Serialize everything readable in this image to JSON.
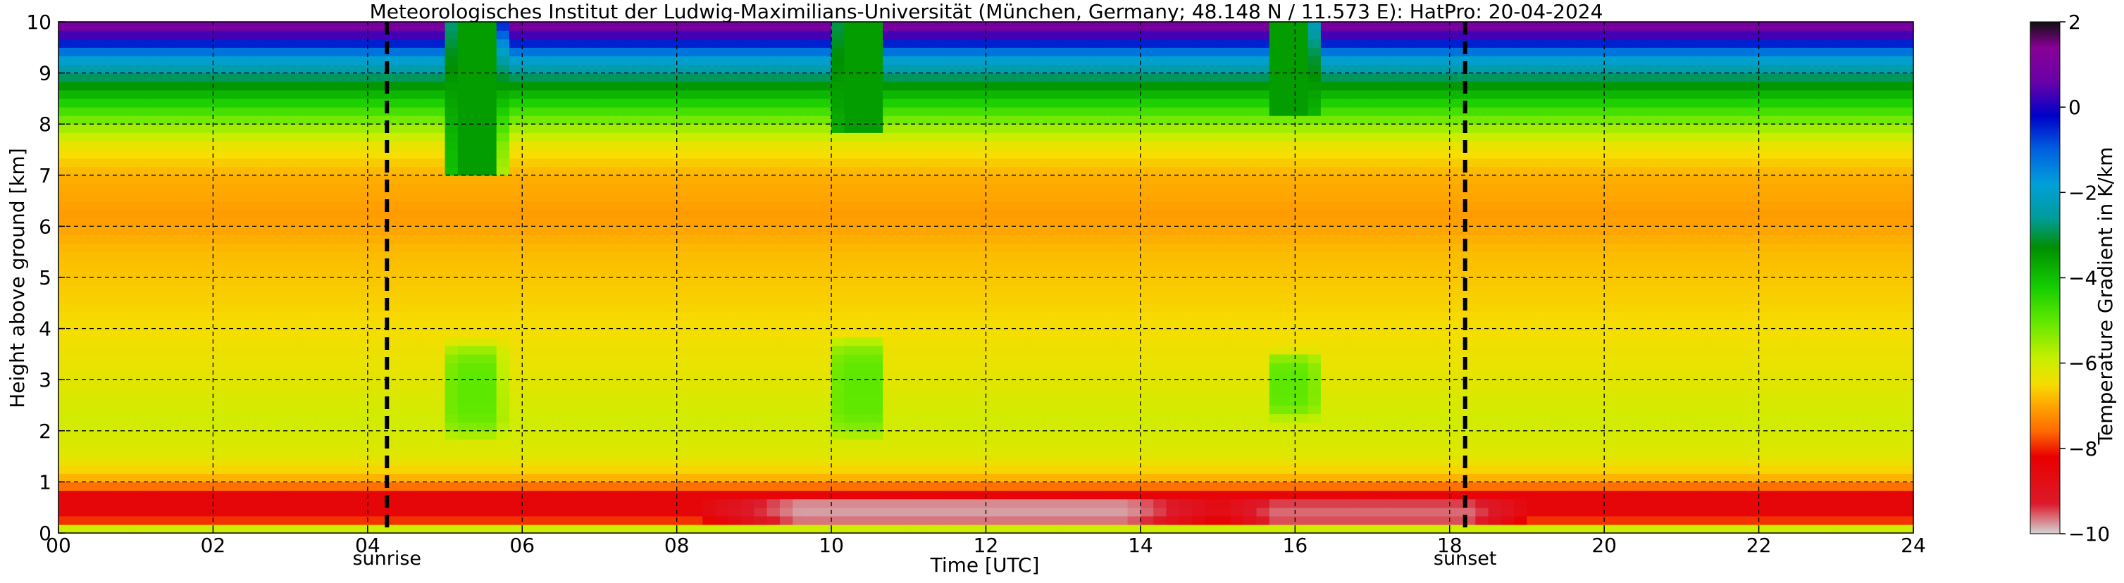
{
  "chart_data": {
    "type": "heatmap",
    "title": "Meteorologisches Institut der Ludwig-Maximilians-Universität (München, Germany; 48.148 N / 11.573 E):    HatPro: 20-04-2024",
    "xlabel": "Time [UTC]",
    "ylabel": "Height above ground [km]",
    "colorbar_label": "Temperature Gradient in K/km",
    "xlim": [
      0,
      24
    ],
    "ylim": [
      0,
      10
    ],
    "x_ticks": [
      0,
      2,
      4,
      6,
      8,
      10,
      12,
      14,
      16,
      18,
      20,
      22,
      24
    ],
    "x_tick_labels": [
      "00",
      "02",
      "04",
      "06",
      "08",
      "10",
      "12",
      "14",
      "16",
      "18",
      "20",
      "22",
      "24"
    ],
    "y_ticks": [
      0,
      1,
      2,
      3,
      4,
      5,
      6,
      7,
      8,
      9,
      10
    ],
    "y_tick_labels": [
      "0",
      "1",
      "2",
      "3",
      "4",
      "5",
      "6",
      "7",
      "8",
      "9",
      "10"
    ],
    "grid": true,
    "grid_x": [
      2,
      4,
      6,
      8,
      10,
      12,
      14,
      16,
      18,
      20,
      22
    ],
    "grid_y": [
      1,
      2,
      3,
      4,
      5,
      6,
      7,
      8,
      9
    ],
    "sunrise": {
      "label": "sunrise",
      "time": 4.25
    },
    "sunset": {
      "label": "sunset",
      "time": 18.2
    },
    "colorbar": {
      "range": [
        -10,
        2
      ],
      "ticks": [
        2,
        0,
        -2,
        -4,
        -6,
        -8,
        -10
      ],
      "tick_labels": [
        "2",
        "0",
        "−2",
        "−4",
        "−6",
        "−8",
        "−10"
      ],
      "stops": [
        {
          "v": -10,
          "color": "#d4d4d4"
        },
        {
          "v": -9.3,
          "color": "#dc1a2a"
        },
        {
          "v": -8.2,
          "color": "#e80000"
        },
        {
          "v": -7.6,
          "color": "#ff6a00"
        },
        {
          "v": -7.0,
          "color": "#ffa500"
        },
        {
          "v": -6.5,
          "color": "#f6dd00"
        },
        {
          "v": -5.9,
          "color": "#c8ef00"
        },
        {
          "v": -5.0,
          "color": "#5ee800"
        },
        {
          "v": -4.2,
          "color": "#14cc00"
        },
        {
          "v": -3.3,
          "color": "#008f00"
        },
        {
          "v": -2.6,
          "color": "#009c9c"
        },
        {
          "v": -1.8,
          "color": "#00a0d8"
        },
        {
          "v": -1.0,
          "color": "#0060e0"
        },
        {
          "v": -0.2,
          "color": "#0000c8"
        },
        {
          "v": 0.6,
          "color": "#6a00a8"
        },
        {
          "v": 1.4,
          "color": "#880096"
        },
        {
          "v": 2.0,
          "color": "#101010"
        }
      ]
    },
    "base_profile": [
      {
        "h": 0.0,
        "g": -5.0
      },
      {
        "h": 0.12,
        "g": -6.4
      },
      {
        "h": 0.3,
        "g": -8.5
      },
      {
        "h": 0.75,
        "g": -8.4
      },
      {
        "h": 0.9,
        "g": -7.6
      },
      {
        "h": 1.1,
        "g": -6.8
      },
      {
        "h": 1.5,
        "g": -6.2
      },
      {
        "h": 2.2,
        "g": -6.0
      },
      {
        "h": 3.2,
        "g": -6.3
      },
      {
        "h": 4.5,
        "g": -6.6
      },
      {
        "h": 5.5,
        "g": -6.8
      },
      {
        "h": 6.2,
        "g": -7.1
      },
      {
        "h": 7.0,
        "g": -6.9
      },
      {
        "h": 7.6,
        "g": -6.3
      },
      {
        "h": 8.0,
        "g": -5.4
      },
      {
        "h": 8.3,
        "g": -4.6
      },
      {
        "h": 8.7,
        "g": -3.6
      },
      {
        "h": 9.0,
        "g": -2.6
      },
      {
        "h": 9.3,
        "g": -1.8
      },
      {
        "h": 9.6,
        "g": -0.4
      },
      {
        "h": 9.85,
        "g": 0.8
      },
      {
        "h": 10.0,
        "g": 1.2
      }
    ],
    "events": [
      {
        "t_start": 5.1,
        "t_end": 5.65,
        "h_from": 1.8,
        "h_to": 3.8,
        "g": -5.0
      },
      {
        "t_start": 5.1,
        "t_end": 5.65,
        "h_from": 7.0,
        "h_to": 10.0,
        "g": -3.5
      },
      {
        "t_start": 10.1,
        "t_end": 10.6,
        "h_from": 1.8,
        "h_to": 3.9,
        "g": -5.0
      },
      {
        "t_start": 10.1,
        "t_end": 10.6,
        "h_from": 7.8,
        "h_to": 10.0,
        "g": -3.5
      },
      {
        "t_start": 15.75,
        "t_end": 16.2,
        "h_from": 2.2,
        "h_to": 3.6,
        "g": -5.0
      },
      {
        "t_start": 15.75,
        "t_end": 16.2,
        "h_from": 8.2,
        "h_to": 10.0,
        "g": -3.5
      },
      {
        "t_start": 8.4,
        "t_end": 15.0,
        "h_from": 0.1,
        "h_to": 0.75,
        "g": -9.8
      },
      {
        "t_start": 15.1,
        "t_end": 18.9,
        "h_from": 0.1,
        "h_to": 0.7,
        "g": -9.6
      }
    ]
  }
}
